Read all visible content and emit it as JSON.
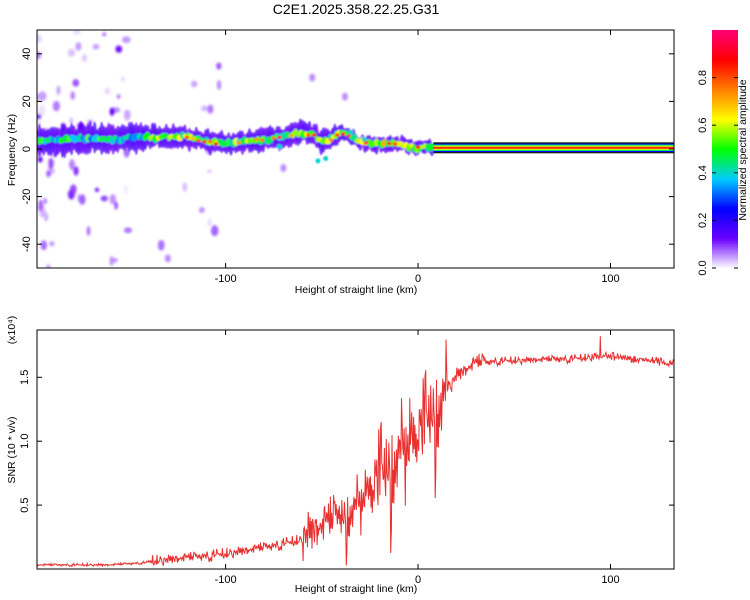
{
  "title": "C2E1.2025.358.22.25.G31",
  "chart_data": [
    {
      "type": "heatmap",
      "name": "spectrogram",
      "xlabel": "Height of straight line (km)",
      "ylabel": "Frequency (Hz)",
      "xlim": [
        -198,
        133
      ],
      "ylim": [
        -50,
        50
      ],
      "x_ticks": [
        -100,
        0,
        100
      ],
      "y_ticks": [
        -40,
        -20,
        0,
        20,
        40
      ],
      "colorbar": {
        "label": "Normalized spectral amplitude",
        "range": [
          0.0,
          1.0
        ],
        "ticks": [
          0.0,
          0.2,
          0.4,
          0.6,
          0.8
        ],
        "colormap": [
          "#ffffff",
          "#6a00ff",
          "#0000ff",
          "#00ccff",
          "#00ff00",
          "#ffff00",
          "#ff8000",
          "#ff0000",
          "#ff0077"
        ]
      },
      "ridge": {
        "x": [
          -198,
          -180,
          -160,
          -140,
          -120,
          -110,
          -100,
          -90,
          -80,
          -70,
          -60,
          -55,
          -50,
          -45,
          -40,
          -35,
          -30,
          -25,
          -20,
          -15,
          -10,
          -5,
          0,
          5,
          10,
          40,
          80,
          133
        ],
        "y": [
          3,
          4,
          4,
          5,
          5,
          3,
          2,
          3,
          4,
          5,
          7,
          6,
          3,
          4,
          7,
          5,
          3,
          2,
          2,
          2,
          2,
          1,
          0.5,
          0.5,
          0.5,
          0.5,
          0.5,
          0.5
        ]
      },
      "noise_region_x": [
        -198,
        -135
      ],
      "stable_line_x": [
        8,
        133
      ],
      "stable_line_y": 0.5
    },
    {
      "type": "line",
      "name": "snr",
      "xlabel": "Height of straight line (km)",
      "ylabel": "SNR (10 * v/v)",
      "y_multiplier": "(x10⁴)",
      "xlim": [
        -198,
        133
      ],
      "ylim": [
        0,
        1.87
      ],
      "x_ticks": [
        -100,
        0,
        100
      ],
      "y_ticks": [
        0.5,
        1.0,
        1.5
      ],
      "line_color": "#e83030",
      "trend": {
        "x": [
          -198,
          -160,
          -140,
          -120,
          -100,
          -80,
          -60,
          -50,
          -40,
          -30,
          -20,
          -10,
          0,
          10,
          20,
          30,
          40,
          60,
          80,
          100,
          120,
          133
        ],
        "y": [
          0.03,
          0.03,
          0.05,
          0.08,
          0.11,
          0.16,
          0.22,
          0.3,
          0.4,
          0.52,
          0.72,
          0.9,
          1.05,
          1.28,
          1.5,
          1.6,
          1.62,
          1.63,
          1.64,
          1.66,
          1.63,
          1.6
        ]
      }
    }
  ]
}
